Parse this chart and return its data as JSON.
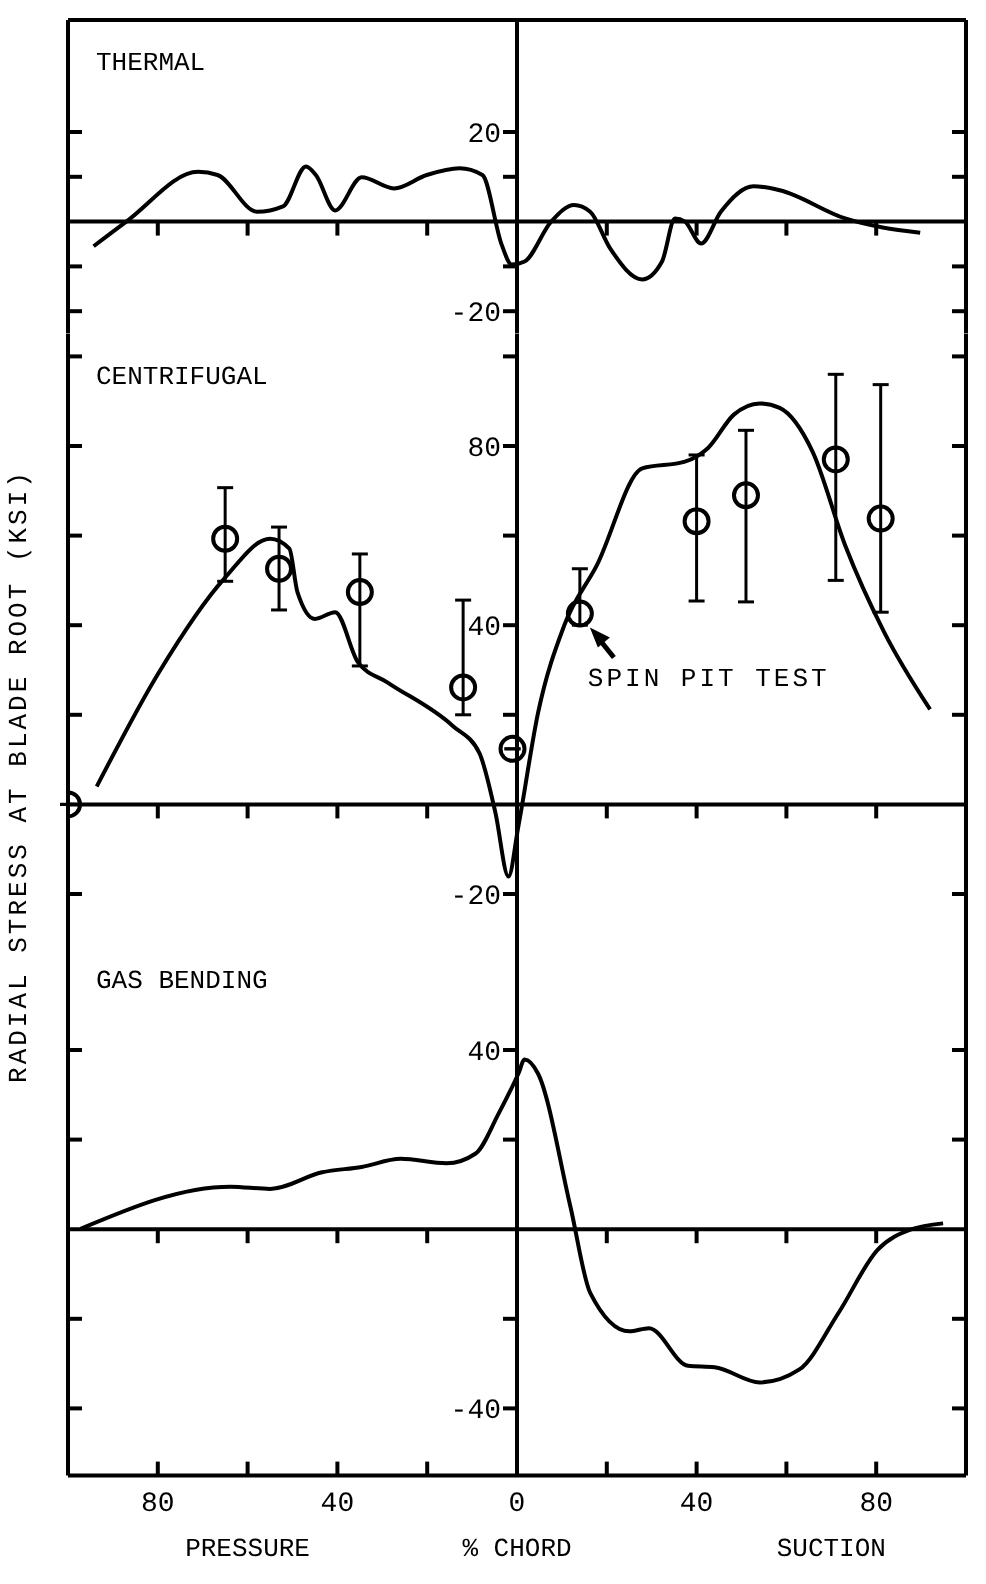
{
  "chart_data": [
    {
      "type": "line",
      "title": "THERMAL",
      "xlim": [
        -100,
        100
      ],
      "xticks": [
        {
          "value": -80,
          "label": null
        },
        {
          "value": -60,
          "label": null
        },
        {
          "value": -40,
          "label": null
        },
        {
          "value": -20,
          "label": null
        },
        {
          "value": 0,
          "label": null
        },
        {
          "value": 20,
          "label": null
        },
        {
          "value": 40,
          "label": null
        },
        {
          "value": 60,
          "label": null
        },
        {
          "value": 80,
          "label": null
        }
      ],
      "ylim": [
        -25,
        45
      ],
      "yticks": [
        {
          "value": -20,
          "label": "-20"
        },
        {
          "value": -10,
          "label": null
        },
        {
          "value": 10,
          "label": null
        },
        {
          "value": 20,
          "label": "20"
        }
      ],
      "tick_labels": "y",
      "series": [
        {
          "color": "#000000",
          "x": [
            -94.3,
            -87,
            -71,
            -66.7,
            -57.9,
            -52.1,
            -47,
            -44.8,
            -40.5,
            -34.6,
            -27.4,
            -20.1,
            -12.8,
            -7.7,
            -3.4,
            -1.2,
            1.7,
            7.6,
            12.7,
            16.3,
            20.7,
            27.9,
            32.3,
            35.2,
            37.4,
            41,
            45.4,
            52.7,
            58.5,
            73.1,
            89.8
          ],
          "values": [
            -5.5,
            0,
            11.1,
            10.4,
            2.2,
            3.4,
            12.3,
            10.4,
            2.5,
            9.9,
            7.4,
            10.4,
            11.9,
            10.4,
            -5.2,
            -9.6,
            -8.9,
            0,
            3.7,
            2.2,
            -5.9,
            -12.9,
            -8.9,
            0.7,
            0,
            -4.9,
            2.2,
            7.9,
            7,
            0.7,
            -2.5
          ]
        }
      ]
    },
    {
      "type": "line",
      "title": "CENTRIFUGAL",
      "ylabel": "RADIAL STRESS AT BLADE ROOT (KSI)",
      "annotations": [
        {
          "text": "SPIN PIT TEST",
          "x": 14,
          "y": 42.6
        }
      ],
      "xlim": [
        -100,
        100
      ],
      "xticks": [
        {
          "value": -80,
          "label": null
        },
        {
          "value": -60,
          "label": null
        },
        {
          "value": -40,
          "label": null
        },
        {
          "value": -20,
          "label": null
        },
        {
          "value": 0,
          "label": null
        },
        {
          "value": 20,
          "label": null
        },
        {
          "value": 40,
          "label": null
        },
        {
          "value": 60,
          "label": null
        },
        {
          "value": 80,
          "label": null
        }
      ],
      "ylim": [
        -30,
        105
      ],
      "yticks": [
        {
          "value": -20,
          "label": "-20"
        },
        {
          "value": 20,
          "label": null
        },
        {
          "value": 40,
          "label": "40"
        },
        {
          "value": 60,
          "label": null
        },
        {
          "value": 80,
          "label": "80"
        },
        {
          "value": 100,
          "label": null
        }
      ],
      "tick_labels": "y",
      "series": [
        {
          "color": "#000000",
          "x": [
            -93.6,
            -79.8,
            -65.2,
            -55,
            -50.7,
            -48.9,
            -45,
            -40.5,
            -35.4,
            -28.8,
            -14.3,
            -8.4,
            -4.8,
            -1.9,
            0.3,
            4.7,
            10.5,
            17.8,
            27.9,
            37.4,
            42.5,
            48.3,
            54.1,
            58.5,
            65.8,
            73.1,
            81.8,
            92
          ],
          "values": [
            4,
            29.4,
            50.4,
            59.3,
            57.1,
            47.4,
            41.4,
            42.9,
            31.7,
            27.2,
            17.5,
            11.5,
            -1.9,
            -16.1,
            -4.9,
            20.5,
            39.9,
            53.4,
            75,
            76.5,
            79.5,
            87,
            89.5,
            88.5,
            78.8,
            57.8,
            38.4,
            21.2
          ]
        },
        {
          "type": "scatter",
          "marker": "circle",
          "color": "#000000",
          "x": [
            -100,
            -65,
            -53,
            -35,
            -12,
            -1,
            14,
            40,
            51,
            71,
            81
          ],
          "values": [
            0,
            59.3,
            52.6,
            47.4,
            26.1,
            12.4,
            42.6,
            63.2,
            69,
            77,
            63.8
          ],
          "errors": [
            null,
            [
              49.8,
              70.7
            ],
            [
              43.4,
              61.9
            ],
            [
              30.9,
              55.9
            ],
            [
              20,
              45.6
            ],
            null,
            [
              40,
              52.6
            ],
            [
              45.4,
              78
            ],
            [
              45.2,
              83.5
            ],
            [
              50,
              96
            ],
            [
              42.9,
              93.7
            ]
          ]
        }
      ]
    },
    {
      "type": "line",
      "title": "GAS BENDING",
      "xlabel": "% CHORD",
      "annotations": [
        "PRESSURE",
        "SUCTION"
      ],
      "xlim": [
        -100,
        100
      ],
      "xticks": [
        {
          "value": -80,
          "label": "80"
        },
        {
          "value": -60,
          "label": null
        },
        {
          "value": -40,
          "label": "40"
        },
        {
          "value": -20,
          "label": null
        },
        {
          "value": 0,
          "label": "0"
        },
        {
          "value": 20,
          "label": null
        },
        {
          "value": 40,
          "label": "40"
        },
        {
          "value": 60,
          "label": null
        },
        {
          "value": 80,
          "label": "80"
        }
      ],
      "ylim": [
        -55,
        65
      ],
      "yticks": [
        {
          "value": -40,
          "label": "-40"
        },
        {
          "value": -20,
          "label": null
        },
        {
          "value": 20,
          "label": null
        },
        {
          "value": 40,
          "label": "40"
        }
      ],
      "series": [
        {
          "color": "#000000",
          "x": [
            -97.2,
            -63.8,
            -55,
            -43.4,
            -34.6,
            -25.9,
            -15.7,
            -9.2,
            -4.1,
            0.3,
            1.7,
            4.7,
            11.9,
            16.3,
            25,
            29.4,
            38.1,
            44,
            54.1,
            62.9,
            71.6,
            80.3,
            87.6,
            94.9
          ],
          "values": [
            0.1,
            9.5,
            9,
            12.7,
            13.9,
            15.7,
            14.7,
            16.9,
            25.8,
            34.7,
            37.9,
            34.7,
            5,
            -14.2,
            -22.8,
            -22.1,
            -30.5,
            -30.8,
            -34.2,
            -31.3,
            -18.7,
            -4.6,
            -0.1,
            1.3
          ]
        }
      ]
    }
  ]
}
